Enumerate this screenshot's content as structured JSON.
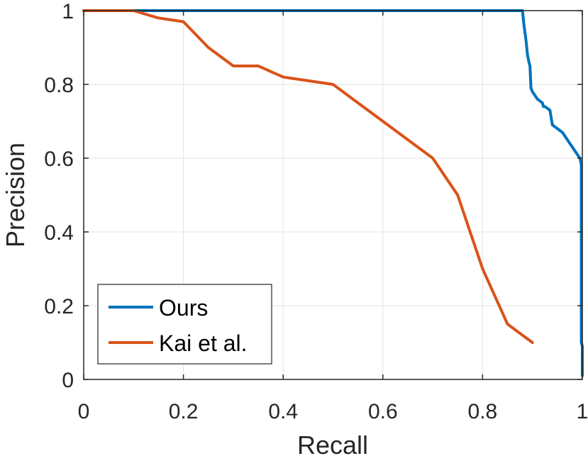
{
  "chart_data": {
    "type": "line",
    "xlabel": "Recall",
    "ylabel": "Precision",
    "xlim": [
      0,
      1
    ],
    "ylim": [
      0,
      1
    ],
    "xticks": [
      0,
      0.2,
      0.4,
      0.6,
      0.8,
      1
    ],
    "yticks": [
      0,
      0.2,
      0.4,
      0.6,
      0.8,
      1
    ],
    "xtick_labels": [
      "0",
      "0.2",
      "0.4",
      "0.6",
      "0.8",
      "1"
    ],
    "ytick_labels": [
      "0",
      "0.2",
      "0.4",
      "0.6",
      "0.8",
      "1"
    ],
    "grid": true,
    "legend_position": "bottom-left",
    "series": [
      {
        "name": "Ours",
        "color": "#0072BD",
        "x": [
          0,
          0.88,
          0.883,
          0.887,
          0.89,
          0.893,
          0.895,
          0.897,
          0.9,
          0.91,
          0.92,
          0.922,
          0.925,
          0.935,
          0.94,
          0.95,
          0.96,
          0.97,
          0.98,
          0.985,
          0.99,
          0.995,
          0.997,
          0.998,
          0.998,
          1.0,
          1.0
        ],
        "y": [
          1.0,
          1.0,
          0.96,
          0.92,
          0.88,
          0.86,
          0.85,
          0.79,
          0.78,
          0.76,
          0.75,
          0.74,
          0.74,
          0.73,
          0.69,
          0.68,
          0.67,
          0.65,
          0.63,
          0.62,
          0.61,
          0.6,
          0.59,
          0.58,
          0.1,
          0.09,
          0.01
        ]
      },
      {
        "name": "Kai et al.",
        "color": "#D95319",
        "x": [
          0,
          0.1,
          0.15,
          0.2,
          0.25,
          0.3,
          0.35,
          0.4,
          0.5,
          0.6,
          0.7,
          0.75,
          0.8,
          0.85,
          0.9
        ],
        "y": [
          1.0,
          1.0,
          0.98,
          0.97,
          0.9,
          0.85,
          0.85,
          0.82,
          0.8,
          0.7,
          0.6,
          0.5,
          0.3,
          0.15,
          0.1
        ]
      }
    ]
  }
}
